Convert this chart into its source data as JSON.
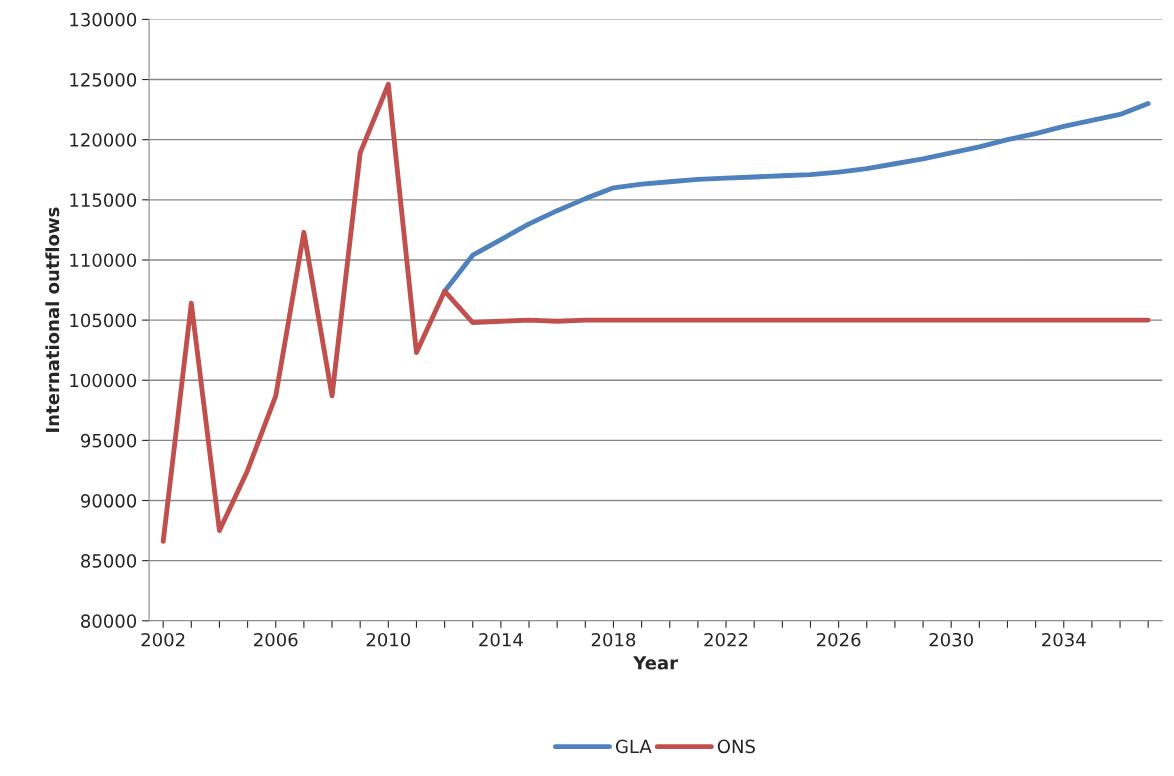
{
  "chart_data": {
    "type": "line",
    "xlabel": "Year",
    "ylabel": "International outflows",
    "categories": [
      "2002",
      null,
      null,
      null,
      "2006",
      null,
      null,
      null,
      "2010",
      null,
      null,
      null,
      "2014",
      null,
      null,
      null,
      "2018",
      null,
      null,
      null,
      "2022",
      null,
      null,
      null,
      "2026",
      null,
      null,
      null,
      "2030",
      null,
      null,
      null,
      "2034",
      null,
      null,
      null
    ],
    "series": [
      {
        "name": "GLA",
        "color": "#4f81bd",
        "values": [
          null,
          null,
          null,
          null,
          null,
          null,
          null,
          null,
          null,
          null,
          107400,
          110400,
          111700,
          113000,
          114100,
          115100,
          116000,
          116300,
          116500,
          116700,
          116800,
          116900,
          117000,
          117100,
          117300,
          117600,
          118000,
          118400,
          118900,
          119400,
          120000,
          120500,
          121100,
          121600,
          122100,
          123000
        ]
      },
      {
        "name": "ONS",
        "color": "#c0504d",
        "values": [
          86600,
          106400,
          87500,
          92500,
          98700,
          112300,
          98700,
          118900,
          124600,
          102300,
          107400,
          104800,
          104900,
          105000,
          104900,
          105000,
          105000,
          105000,
          105000,
          105000,
          105000,
          105000,
          105000,
          105000,
          105000,
          105000,
          105000,
          105000,
          105000,
          105000,
          105000,
          105000,
          105000,
          105000,
          105000,
          105000
        ]
      }
    ],
    "ylim": [
      80000,
      130000
    ],
    "yticks": [
      80000,
      85000,
      90000,
      95000,
      100000,
      105000,
      110000,
      115000,
      120000,
      125000,
      130000
    ],
    "grid": "y",
    "legend": "bottom",
    "marker": "none",
    "line_style": "solid"
  }
}
